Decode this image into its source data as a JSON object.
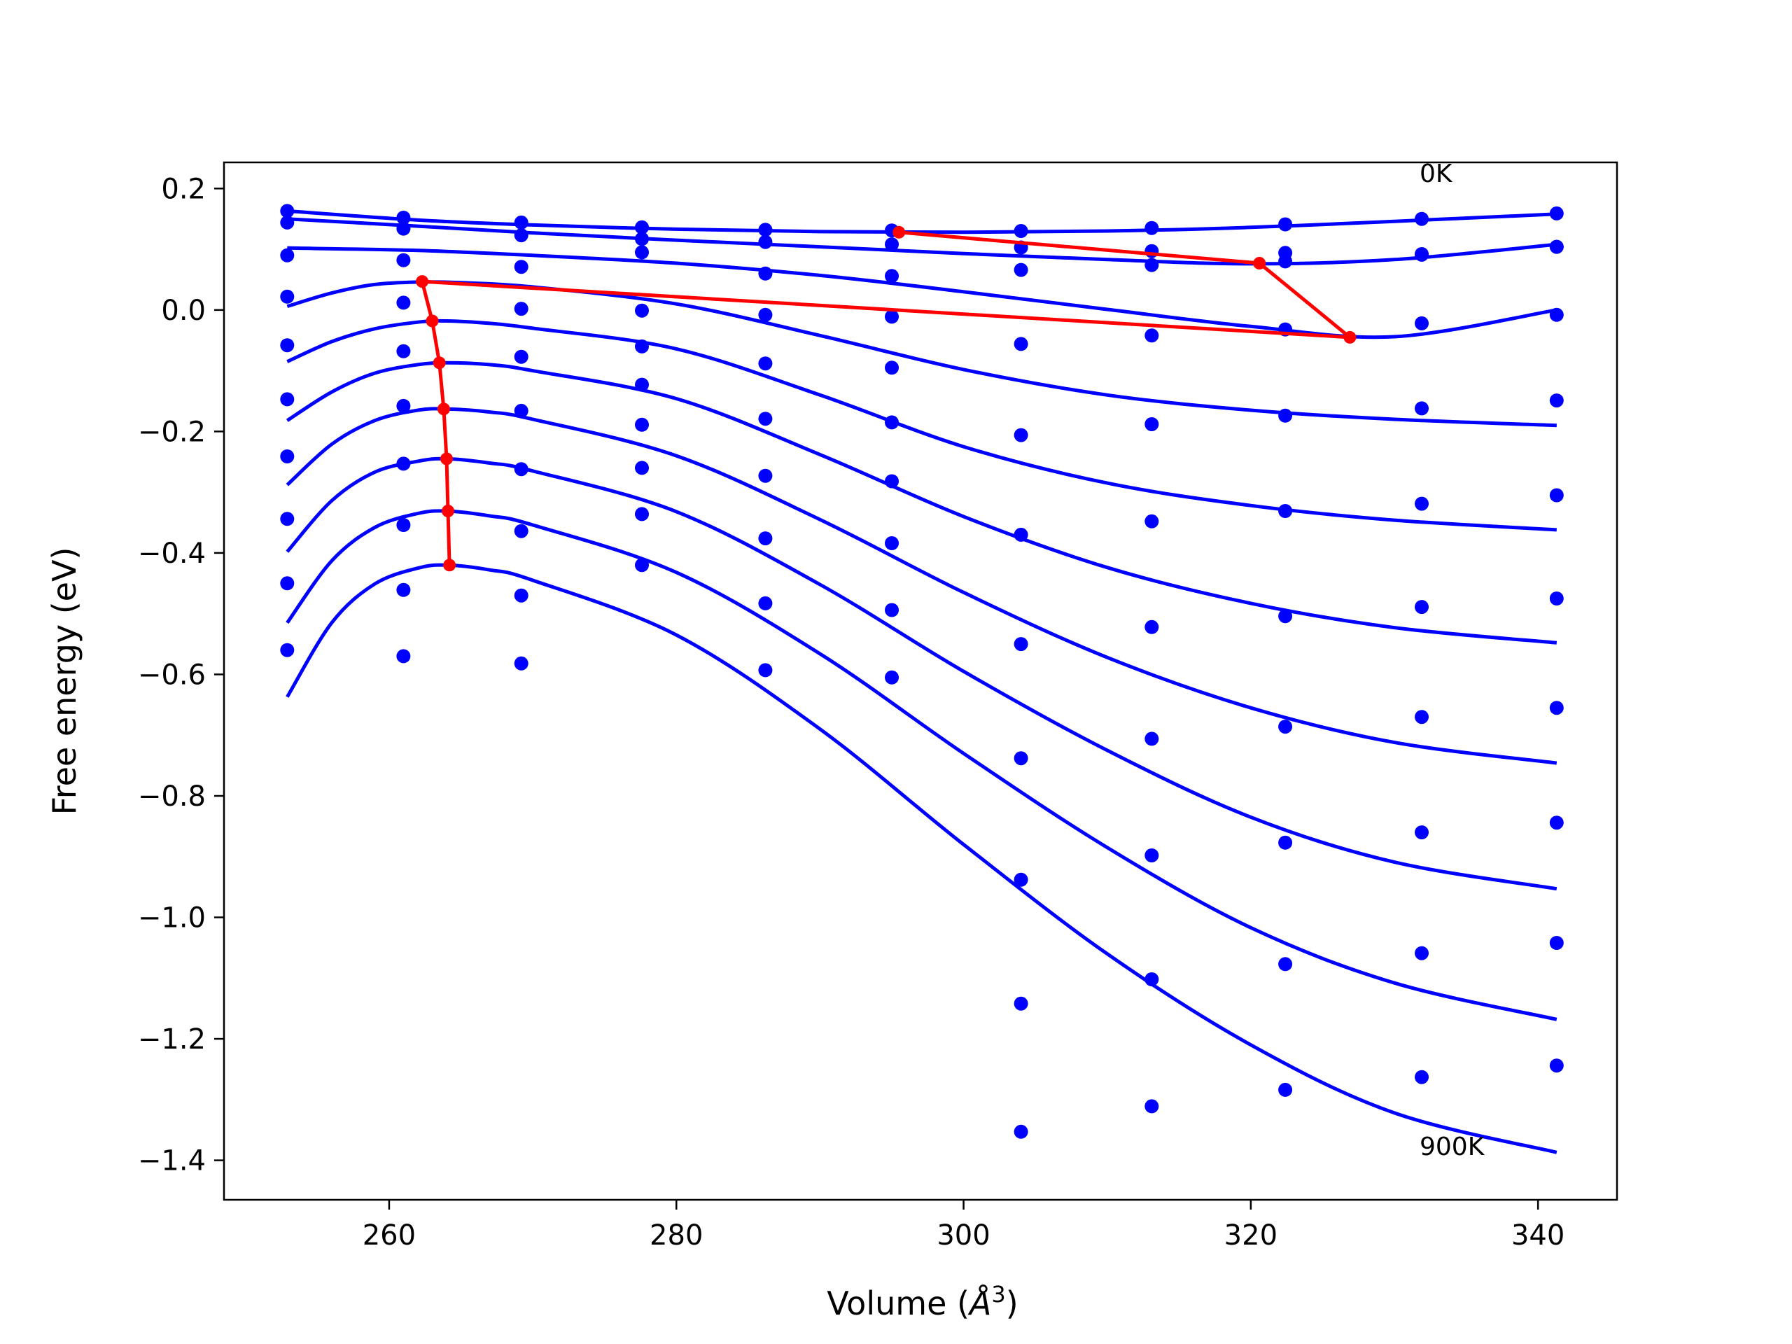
{
  "chart_data": {
    "type": "scatter",
    "title": "",
    "xlabel": "Volume (",
    "xlabel_unit": "Å",
    "xlabel_exp": "3",
    "xlabel_close": ")",
    "ylabel": "Free energy (eV)",
    "xlim": [
      248.5,
      345.5
    ],
    "ylim": [
      -1.465,
      0.243
    ],
    "x_ticks": [
      260,
      280,
      300,
      320,
      340
    ],
    "x_tick_labels": [
      "260",
      "280",
      "300",
      "320",
      "340"
    ],
    "y_ticks": [
      0.2,
      0.0,
      -0.2,
      -0.4,
      -0.6,
      -0.8,
      -1.0,
      -1.2,
      -1.4
    ],
    "y_tick_labels": [
      "0.2",
      "0.0",
      "−0.2",
      "−0.4",
      "−0.6",
      "−0.8",
      "−1.0",
      "−1.2",
      "−1.4"
    ],
    "grid": false,
    "annotations": [
      {
        "text": "0K",
        "x": 332,
        "y": 0.215
      },
      {
        "text": "900K",
        "x": 332,
        "y": -1.39
      }
    ],
    "volumes": [
      252.9,
      261.0,
      269.2,
      277.6,
      286.2,
      295.0,
      304.0,
      313.1,
      322.4,
      331.9,
      341.3
    ],
    "scatter_series": [
      {
        "y": [
          0.163,
          0.152,
          0.144,
          0.136,
          0.132,
          0.131,
          0.13,
          0.135,
          0.141,
          0.15,
          0.159
        ]
      },
      {
        "y": [
          0.144,
          0.134,
          0.123,
          0.117,
          0.112,
          0.108,
          0.103,
          0.097,
          0.094,
          0.091,
          0.104
        ]
      },
      {
        "y": [
          0.09,
          0.082,
          0.071,
          0.095,
          0.06,
          0.056,
          0.066,
          0.074,
          0.08,
          0.092,
          0.104
        ]
      },
      {
        "y": [
          0.022,
          0.012,
          0.002,
          -0.001,
          -0.008,
          -0.011,
          -0.056,
          -0.042,
          -0.032,
          -0.022,
          -0.008
        ]
      },
      {
        "y": [
          -0.058,
          -0.068,
          -0.077,
          -0.06,
          -0.088,
          -0.095,
          -0.206,
          -0.188,
          -0.174,
          -0.162,
          -0.149
        ]
      },
      {
        "y": [
          -0.147,
          -0.158,
          -0.166,
          -0.123,
          -0.179,
          -0.185,
          -0.37,
          -0.348,
          -0.331,
          -0.319,
          -0.305
        ]
      },
      {
        "y": [
          -0.241,
          -0.253,
          -0.262,
          -0.189,
          -0.273,
          -0.282,
          -0.55,
          -0.522,
          -0.504,
          -0.489,
          -0.475
        ]
      },
      {
        "y": [
          -0.344,
          -0.354,
          -0.364,
          -0.26,
          -0.376,
          -0.384,
          -0.738,
          -0.706,
          -0.686,
          -0.67,
          -0.655
        ]
      },
      {
        "y": [
          -0.45,
          -0.461,
          -0.47,
          -0.336,
          -0.483,
          -0.494,
          -0.938,
          -0.898,
          -0.877,
          -0.86,
          -0.844
        ]
      },
      {
        "y": [
          -0.56,
          -0.57,
          -0.582,
          -0.42,
          -0.593,
          -0.605,
          -1.142,
          -1.102,
          -1.077,
          -1.059,
          -1.042
        ]
      },
      {
        "y": [
          null,
          null,
          null,
          null,
          null,
          null,
          -1.353,
          -1.311,
          -1.284,
          -1.263,
          -1.244
        ]
      }
    ],
    "fit_curves": [
      {
        "x": [
          252.9,
          262,
          270,
          280,
          290,
          300,
          310,
          320,
          330,
          341.3
        ],
        "y": [
          0.163,
          0.148,
          0.14,
          0.133,
          0.129,
          0.128,
          0.13,
          0.136,
          0.146,
          0.158
        ]
      },
      {
        "x": [
          252.9,
          262,
          270,
          280,
          290,
          300,
          310,
          320,
          330,
          341.3
        ],
        "y": [
          0.15,
          0.138,
          0.127,
          0.115,
          0.104,
          0.093,
          0.083,
          0.076,
          0.083,
          0.108
        ]
      },
      {
        "x": [
          252.9,
          262,
          270,
          280,
          290,
          300,
          310,
          320,
          330,
          341.3
        ],
        "y": [
          0.102,
          0.098,
          0.09,
          0.077,
          0.057,
          0.03,
          0.001,
          -0.027,
          -0.044,
          0.0
        ]
      },
      {
        "x": [
          252.9,
          256,
          259,
          262,
          265,
          270,
          280,
          290,
          300,
          310,
          320,
          330,
          341.3
        ],
        "y": [
          0.006,
          0.028,
          0.042,
          0.046,
          0.045,
          0.038,
          0.01,
          -0.042,
          -0.098,
          -0.14,
          -0.165,
          -0.18,
          -0.19
        ]
      },
      {
        "x": [
          252.9,
          256,
          259,
          262,
          264,
          267,
          270,
          280,
          290,
          300,
          310,
          320,
          330,
          341.3
        ],
        "y": [
          -0.085,
          -0.052,
          -0.031,
          -0.02,
          -0.018,
          -0.022,
          -0.03,
          -0.064,
          -0.14,
          -0.225,
          -0.285,
          -0.322,
          -0.346,
          -0.362
        ]
      },
      {
        "x": [
          252.9,
          256,
          259,
          262,
          264,
          267,
          270,
          280,
          290,
          300,
          310,
          320,
          330,
          341.3
        ],
        "y": [
          -0.182,
          -0.135,
          -0.104,
          -0.09,
          -0.087,
          -0.09,
          -0.1,
          -0.146,
          -0.238,
          -0.34,
          -0.424,
          -0.483,
          -0.523,
          -0.548
        ]
      },
      {
        "x": [
          252.9,
          256,
          259,
          262,
          264,
          267,
          270,
          280,
          290,
          300,
          310,
          320,
          330,
          341.3
        ],
        "y": [
          -0.288,
          -0.221,
          -0.182,
          -0.165,
          -0.163,
          -0.168,
          -0.18,
          -0.24,
          -0.345,
          -0.465,
          -0.572,
          -0.655,
          -0.712,
          -0.746
        ]
      },
      {
        "x": [
          252.9,
          256,
          259,
          262,
          264,
          267,
          270,
          280,
          290,
          300,
          310,
          320,
          330,
          341.3
        ],
        "y": [
          -0.398,
          -0.314,
          -0.267,
          -0.249,
          -0.245,
          -0.252,
          -0.265,
          -0.332,
          -0.452,
          -0.595,
          -0.725,
          -0.835,
          -0.909,
          -0.953
        ]
      },
      {
        "x": [
          252.9,
          256,
          259,
          262,
          264,
          267,
          270,
          280,
          290,
          300,
          310,
          320,
          330,
          341.3
        ],
        "y": [
          -0.515,
          -0.413,
          -0.358,
          -0.335,
          -0.331,
          -0.339,
          -0.354,
          -0.432,
          -0.566,
          -0.73,
          -0.885,
          -1.017,
          -1.108,
          -1.168
        ]
      },
      {
        "x": [
          252.9,
          256,
          259,
          262,
          264,
          267,
          270,
          280,
          290,
          300,
          310,
          320,
          330,
          341.3
        ],
        "y": [
          -0.637,
          -0.515,
          -0.451,
          -0.425,
          -0.42,
          -0.428,
          -0.445,
          -0.535,
          -0.69,
          -0.88,
          -1.06,
          -1.21,
          -1.322,
          -1.387
        ]
      }
    ],
    "minima_path": {
      "x": [
        295.5,
        320.6,
        326.9,
        262.3,
        263.0,
        263.5,
        263.8,
        264.0,
        264.1,
        264.2
      ],
      "y": [
        0.128,
        0.077,
        -0.045,
        0.047,
        -0.018,
        -0.087,
        -0.163,
        -0.245,
        -0.331,
        -0.42
      ]
    },
    "colors": {
      "points": "#0000ff",
      "fits": "#0000ff",
      "minima": "#ff0000",
      "axes": "#000000"
    }
  }
}
